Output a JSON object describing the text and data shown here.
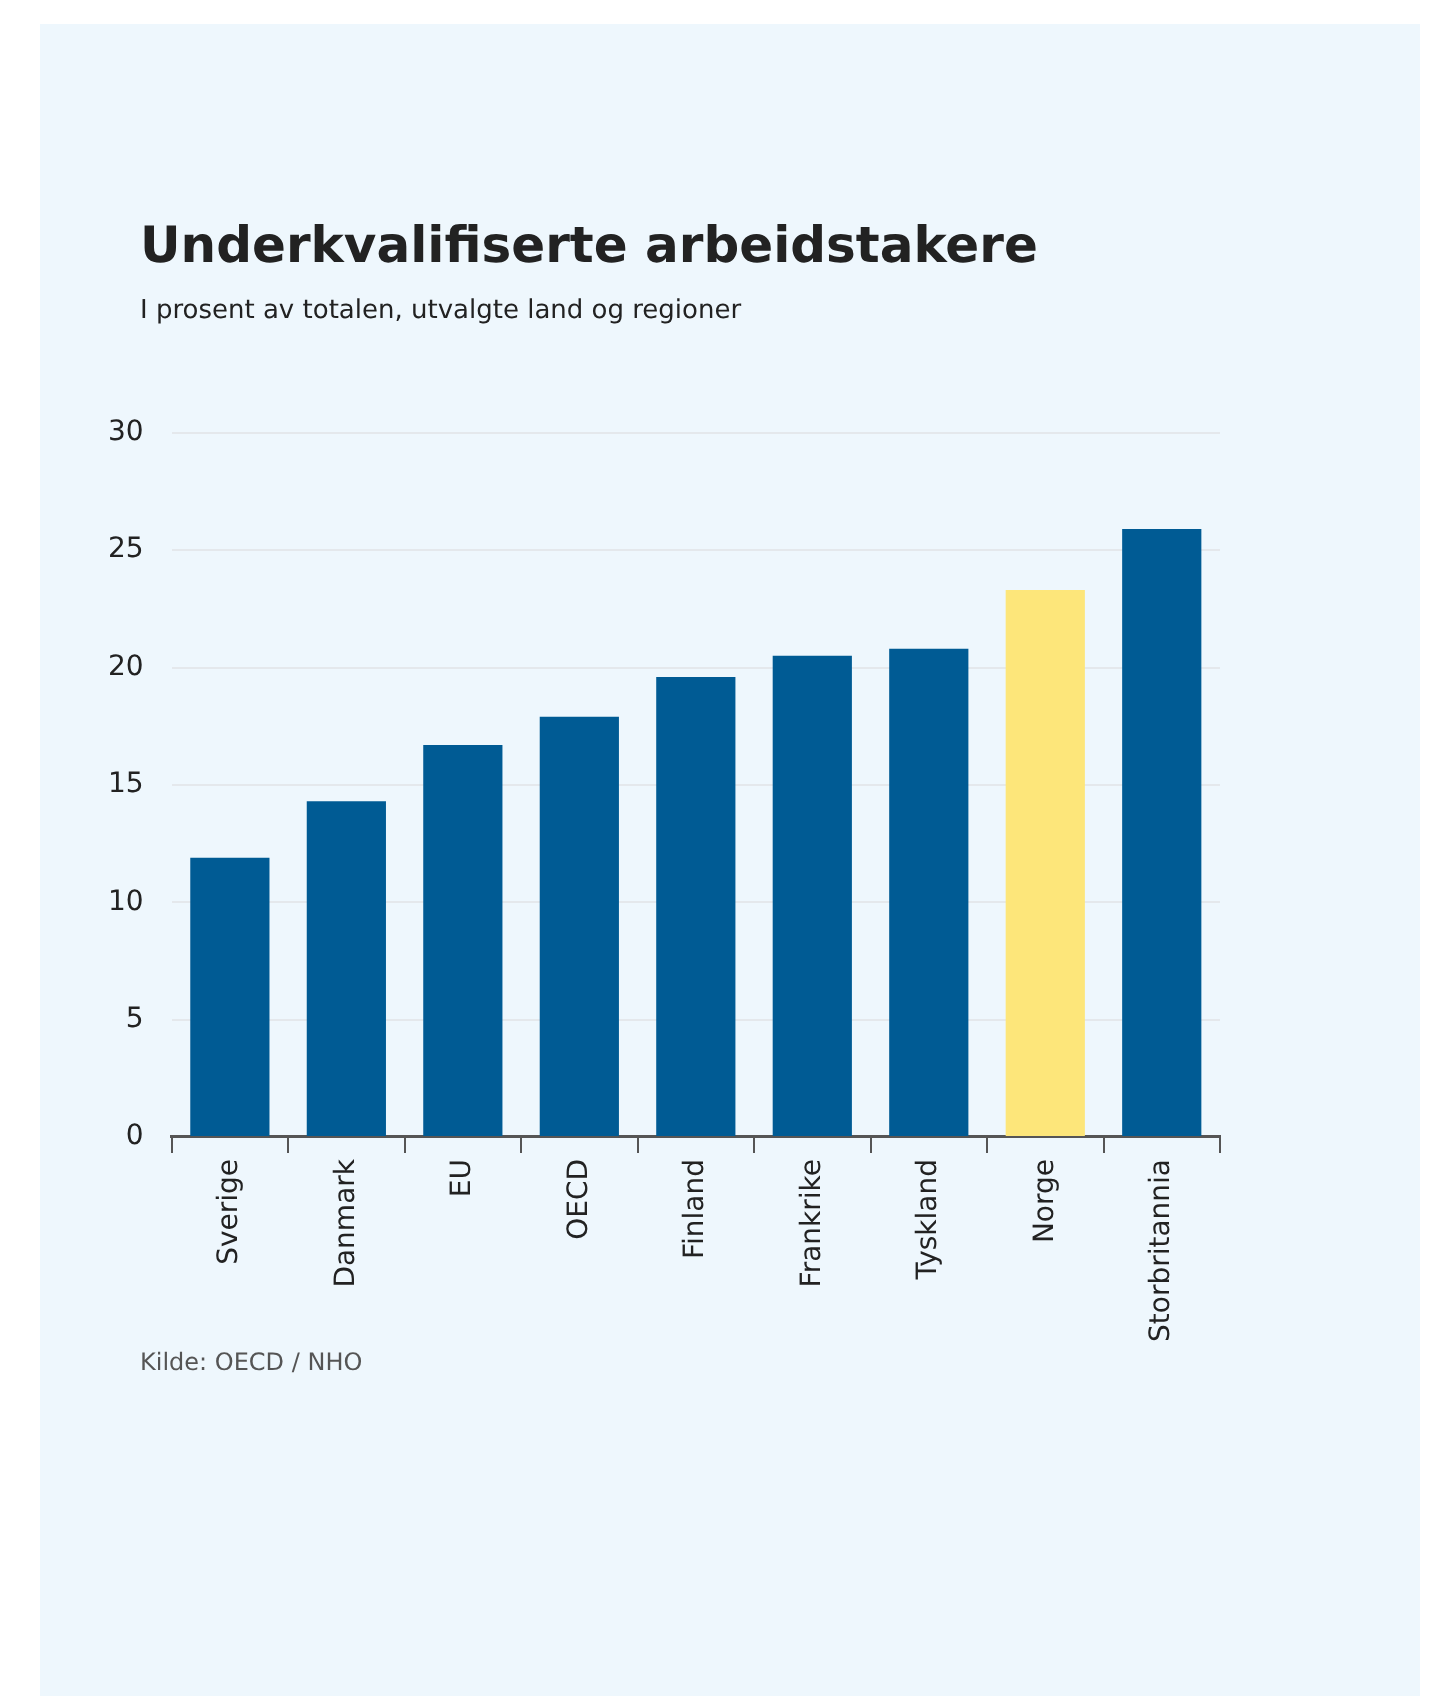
{
  "chart_data": {
    "type": "bar",
    "title": "Underkvalifiserte arbeidstakere",
    "subtitle": "I prosent av totalen, utvalgte land og regioner",
    "categories": [
      "Sverige",
      "Danmark",
      "EU",
      "OECD",
      "Finland",
      "Frankrike",
      "Tyskland",
      "Norge",
      "Storbritannia"
    ],
    "values": [
      11.9,
      14.3,
      16.7,
      17.9,
      19.6,
      20.5,
      20.8,
      23.3,
      25.9
    ],
    "colors": [
      "#005b94",
      "#005b94",
      "#005b94",
      "#005b94",
      "#005b94",
      "#005b94",
      "#005b94",
      "#fde67a",
      "#005b94"
    ],
    "ylim": [
      0,
      30
    ],
    "yticks": [
      0,
      5,
      10,
      15,
      20,
      25,
      30
    ],
    "grid": "y",
    "legend": false,
    "annotations": [
      "Kilde: OECD / NHO"
    ]
  }
}
